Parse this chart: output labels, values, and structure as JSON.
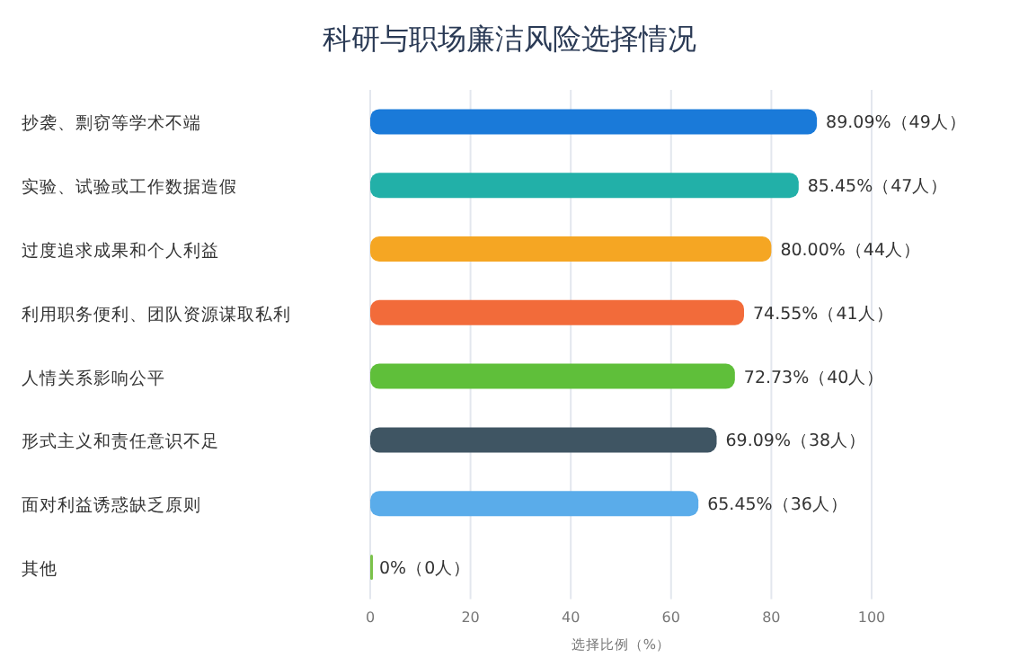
{
  "chart_data": {
    "type": "bar",
    "orientation": "horizontal",
    "title": "科研与职场廉洁风险选择情况",
    "xlabel": "选择比例（%）",
    "categories": [
      "抄袭、剽窃等学术不端",
      "实验、试验或工作数据造假",
      "过度追求成果和个人利益",
      "利用职务便利、团队资源谋取私利",
      "人情关系影响公平",
      "形式主义和责任意识不足",
      "面对利益诱惑缺乏原则",
      "其他"
    ],
    "values": [
      89.09,
      85.45,
      80.0,
      74.55,
      72.73,
      69.09,
      65.45,
      0
    ],
    "colors": [
      "#1a7ad9",
      "#22b0a8",
      "#f5a623",
      "#f26b3a",
      "#5fbf3a",
      "#3f5563",
      "#5aacea",
      "#7bc24a"
    ],
    "value_labels": [
      "89.09%（49人）",
      "85.45%（47人）",
      "80.00%（44人）",
      "74.55%（41人）",
      "72.73%（40人）",
      "69.09%（38人）",
      "65.45%（36人）",
      "0%（0人）"
    ],
    "xlim": [
      0,
      100
    ],
    "xticks": [
      0,
      20,
      40,
      60,
      80,
      100
    ],
    "grid": "x"
  }
}
